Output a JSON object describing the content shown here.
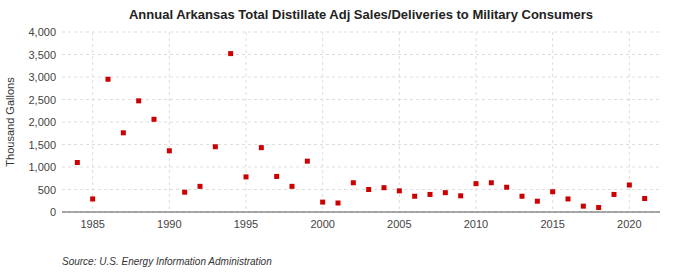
{
  "chart_data": {
    "type": "scatter",
    "title": "Annual Arkansas Total Distillate Adj Sales/Deliveries to Military Consumers",
    "y_label": "Thousand Gallons",
    "source": "Source: U.S. Energy Information Administration",
    "x": [
      1984,
      1985,
      1986,
      1987,
      1988,
      1989,
      1990,
      1991,
      1992,
      1993,
      1994,
      1995,
      1996,
      1997,
      1998,
      1999,
      2000,
      2001,
      2002,
      2003,
      2004,
      2005,
      2006,
      2007,
      2008,
      2009,
      2010,
      2011,
      2012,
      2013,
      2014,
      2015,
      2016,
      2017,
      2018,
      2019,
      2020,
      2021
    ],
    "values": [
      1100,
      290,
      2950,
      1760,
      2470,
      2060,
      1360,
      440,
      570,
      1450,
      3520,
      780,
      1430,
      790,
      570,
      1130,
      220,
      200,
      650,
      500,
      540,
      470,
      350,
      390,
      430,
      360,
      630,
      650,
      550,
      350,
      240,
      450,
      290,
      130,
      100,
      390,
      600,
      300
    ],
    "color": "#cc0000",
    "marker": "square",
    "grid": true,
    "xlim": [
      1983,
      2022
    ],
    "ylim": [
      0,
      4000
    ],
    "xticks": [
      1985,
      1990,
      1995,
      2000,
      2005,
      2010,
      2015,
      2020
    ],
    "yticks": [
      0,
      500,
      {
        "value": 1000,
        "label": "1,000"
      },
      {
        "value": 1500,
        "label": "1,500"
      },
      {
        "value": 2000,
        "label": "2,000"
      },
      {
        "value": 2500,
        "label": "2,500"
      },
      {
        "value": 3000,
        "label": "3,000"
      },
      {
        "value": 3500,
        "label": "3,500"
      },
      {
        "value": 4000,
        "label": "4,000"
      }
    ]
  }
}
